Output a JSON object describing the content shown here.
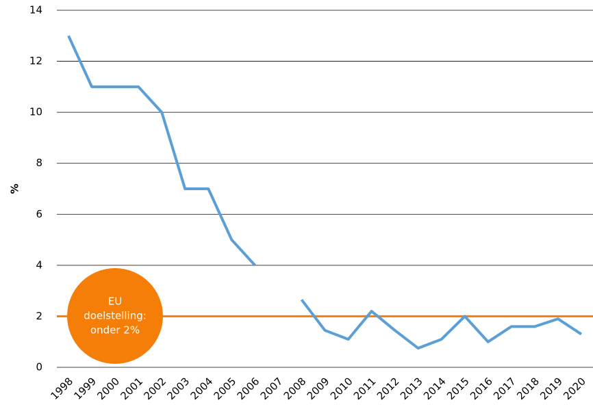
{
  "chart_data": {
    "type": "line",
    "y_label": "%",
    "categories": [
      "1998",
      "1999",
      "2000",
      "2001",
      "2002",
      "2003",
      "2004",
      "2005",
      "2006",
      "2007",
      "2008",
      "2009",
      "2010",
      "2011",
      "2012",
      "2013",
      "2014",
      "2015",
      "2016",
      "2017",
      "2018",
      "2019",
      "2020"
    ],
    "series": [
      {
        "color": "#5b9fd6",
        "values": [
          13,
          11,
          11,
          11,
          10,
          7,
          7,
          5,
          4,
          null,
          2.65,
          1.45,
          1.1,
          2.2,
          1.45,
          0.75,
          1.1,
          2.0,
          1.0,
          1.6,
          1.6,
          1.9,
          1.3
        ]
      }
    ],
    "ylim": [
      0,
      14
    ],
    "yticks": [
      0,
      2,
      4,
      6,
      8,
      10,
      12,
      14
    ],
    "grid": true,
    "reference_line": {
      "value": 2,
      "color": "#f57e09"
    },
    "annotation": {
      "lines": [
        "EU",
        "doelstelling:",
        "onder 2%"
      ],
      "color": "#f57e09"
    }
  }
}
